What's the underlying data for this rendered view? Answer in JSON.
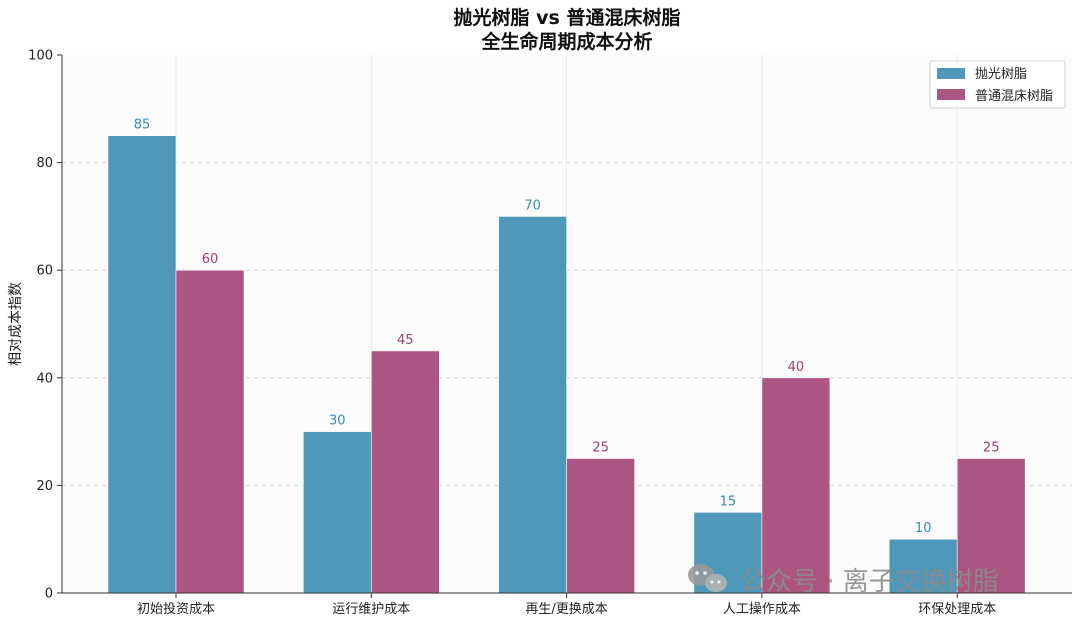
{
  "chart_data": {
    "type": "bar",
    "title": [
      "抛光树脂 vs 普通混床树脂",
      "全生命周期成本分析"
    ],
    "xlabel": "",
    "ylabel": "相对成本指数",
    "ylim": [
      0,
      100
    ],
    "yticks": [
      0,
      20,
      40,
      60,
      80,
      100
    ],
    "categories": [
      "初始投资成本",
      "运行维护成本",
      "再生/更换成本",
      "人工操作成本",
      "环保处理成本"
    ],
    "series": [
      {
        "name": "抛光树脂",
        "values": [
          85,
          30,
          70,
          15,
          10
        ],
        "color": "#4e98b9",
        "label_color": "#3a8bb0"
      },
      {
        "name": "普通混床树脂",
        "values": [
          60,
          45,
          25,
          40,
          25
        ],
        "color": "#ad5582",
        "label_color": "#9c3f70"
      }
    ],
    "grid": true,
    "legend_position": "top-right"
  },
  "watermark": {
    "text": "公众号 · 离子交换树脂",
    "icon": "wechat-icon"
  }
}
